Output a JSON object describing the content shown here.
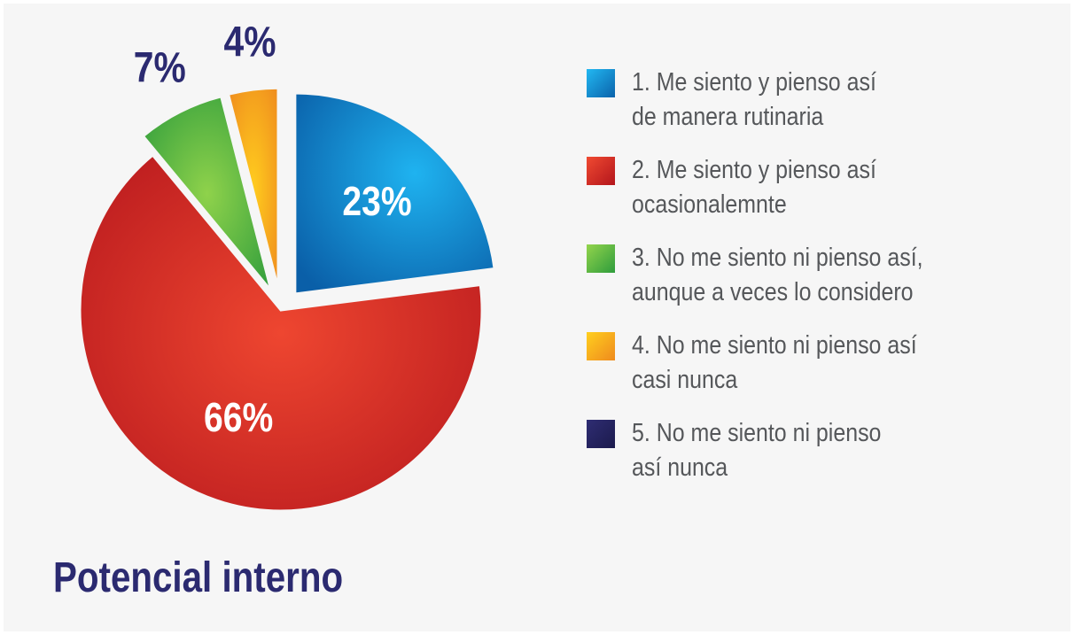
{
  "chart_data": {
    "type": "pie",
    "title": "Potencial interno",
    "slices": [
      {
        "label": "1. Me siento y pienso así\nde manera rutinaria",
        "value": 23,
        "display": "23%",
        "color": "#0f8bd3"
      },
      {
        "label": "2. Me siento y pienso así\nocasionalemnte",
        "value": 66,
        "display": "66%",
        "color": "#e0312a"
      },
      {
        "label": "3. No me siento ni pienso así,\naunque a veces lo considero",
        "value": 7,
        "display": "7%",
        "color": "#5dbb46"
      },
      {
        "label": "4. No me siento ni pienso así\ncasi nunca",
        "value": 4,
        "display": "4%",
        "color": "#f6a21f"
      },
      {
        "label": "5. No me siento ni pienso\nasí nunca",
        "value": 0,
        "display": "",
        "color": "#25235e"
      }
    ],
    "legend_position": "right"
  }
}
